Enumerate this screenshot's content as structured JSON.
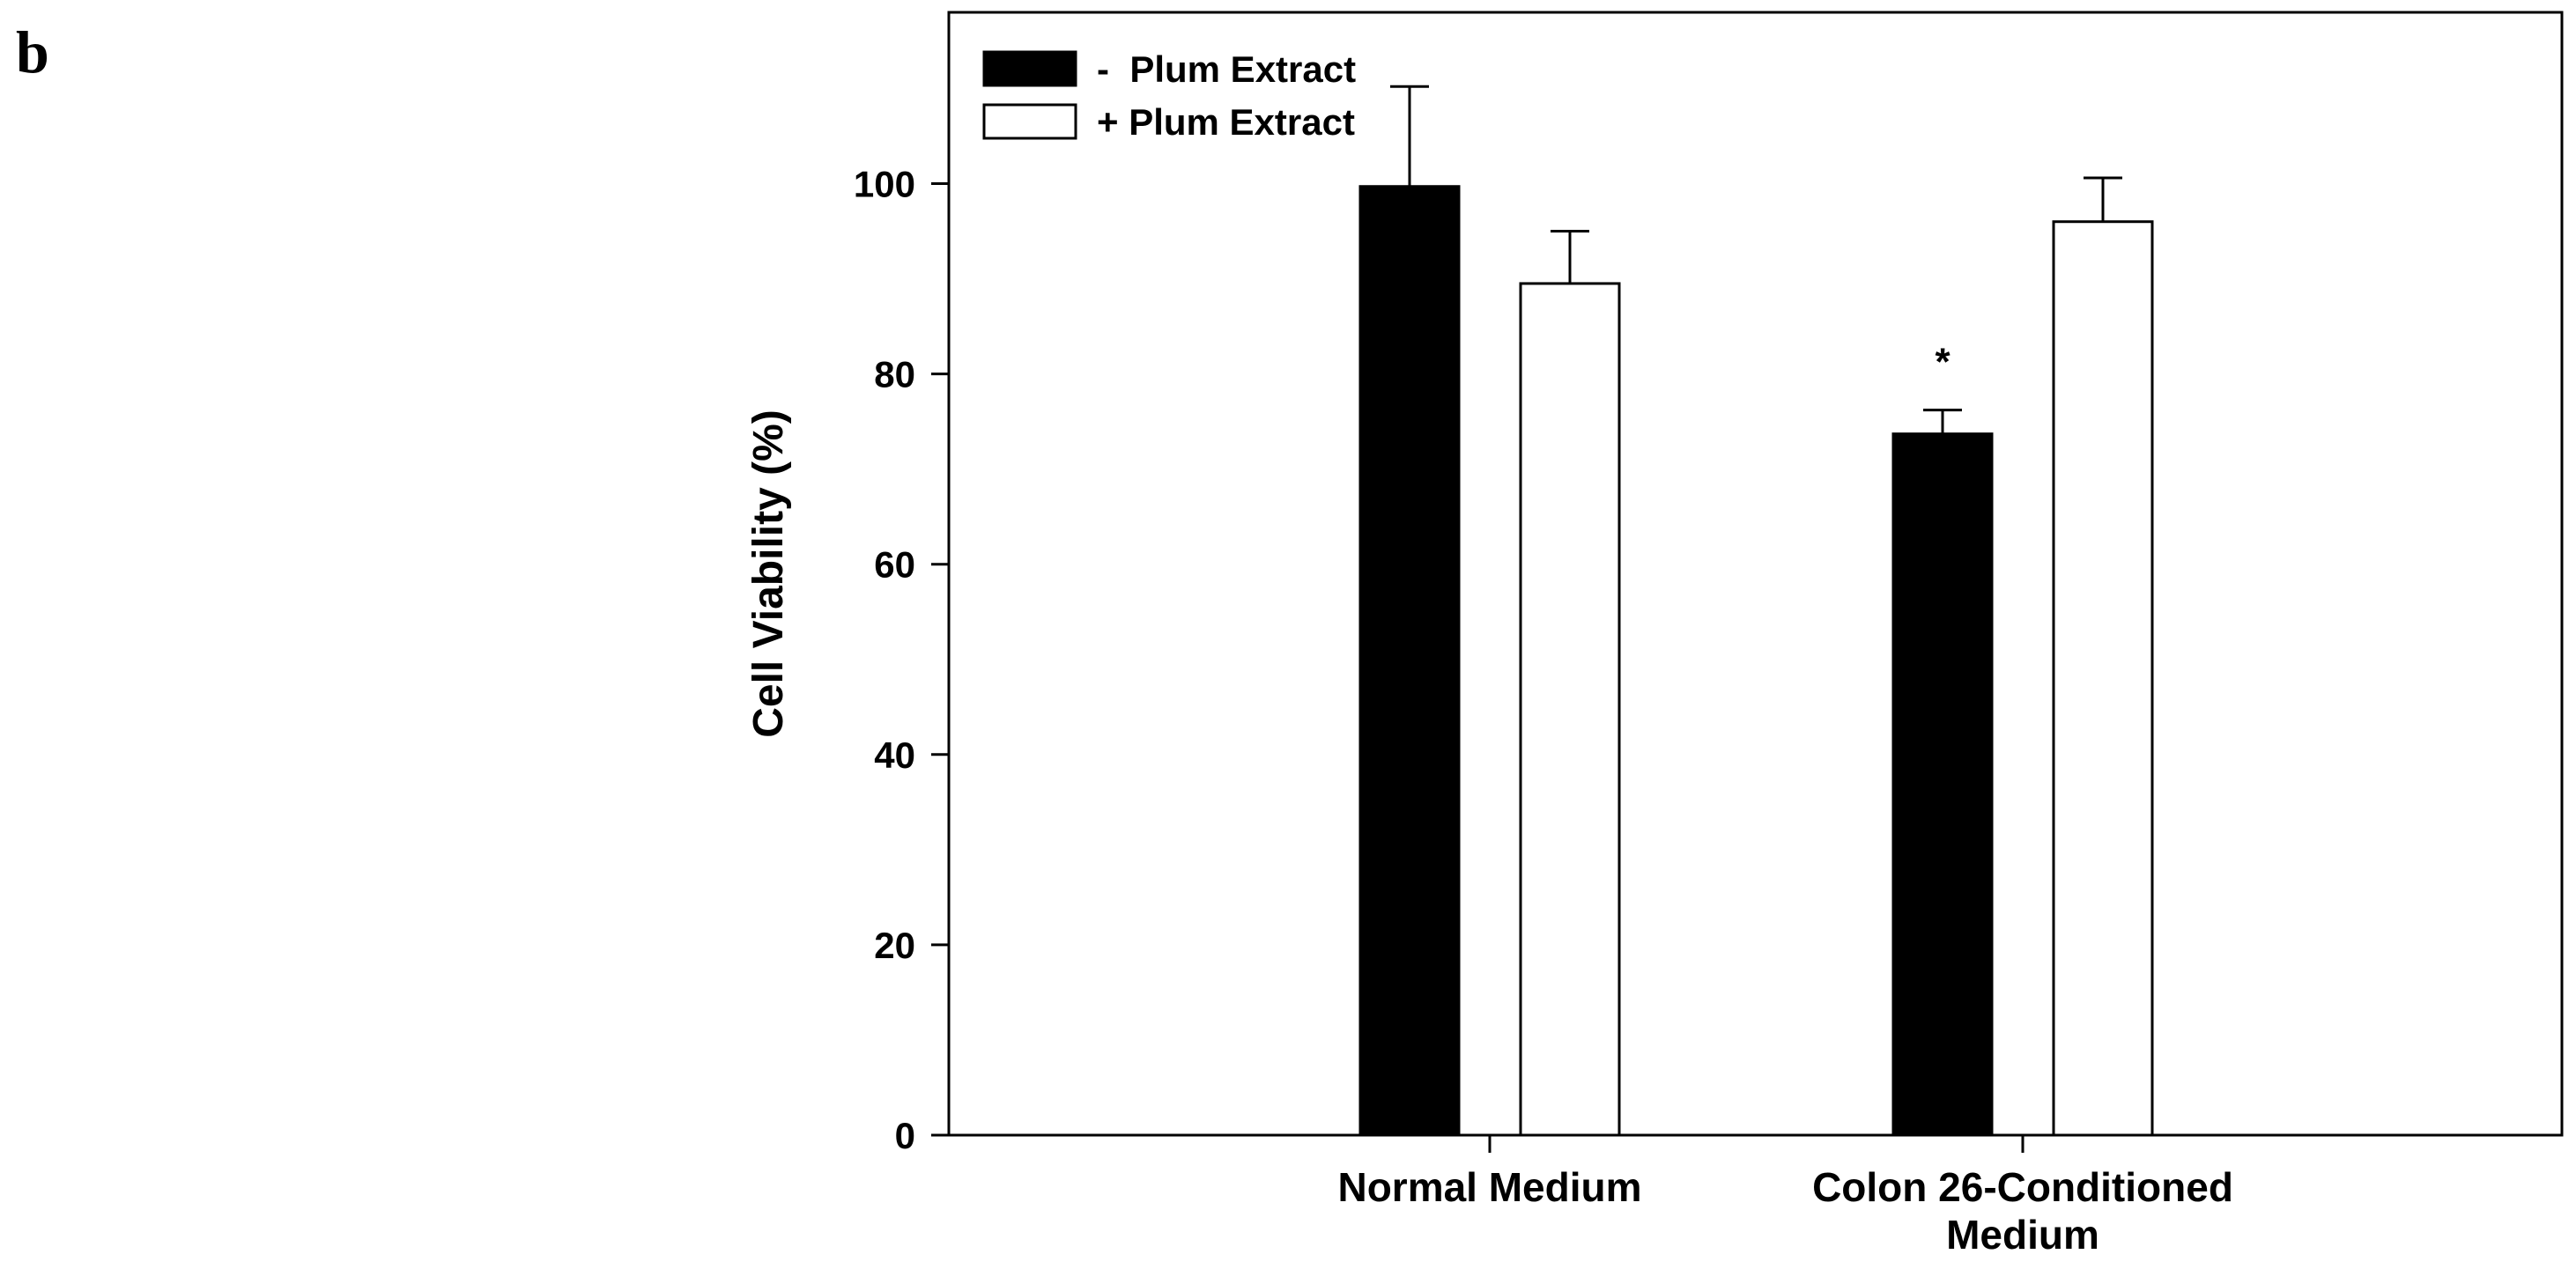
{
  "panel_label": "b",
  "chart_data": {
    "type": "bar",
    "title": "",
    "xlabel": "",
    "ylabel": "Cell Viability (%)",
    "ylim": [
      0,
      118
    ],
    "yticks": [
      0,
      20,
      40,
      60,
      80,
      100
    ],
    "categories": [
      "Normal Medium",
      "Colon 26-Conditioned Medium"
    ],
    "category_lines": [
      [
        "Normal Medium"
      ],
      [
        "Colon 26-Conditioned",
        "Medium"
      ]
    ],
    "series": [
      {
        "name": "-  Plum Extract",
        "fill": "#000000",
        "values": [
          99.7,
          73.7
        ],
        "errors": [
          10.5,
          2.5
        ]
      },
      {
        "name": "+ Plum Extract",
        "fill": "#ffffff",
        "values": [
          89.5,
          96.0
        ],
        "errors": [
          5.5,
          4.6
        ]
      }
    ],
    "annotations": [
      {
        "text": "*",
        "category": 1,
        "series": 0
      }
    ],
    "legend_position": "top-left",
    "grid": false
  }
}
